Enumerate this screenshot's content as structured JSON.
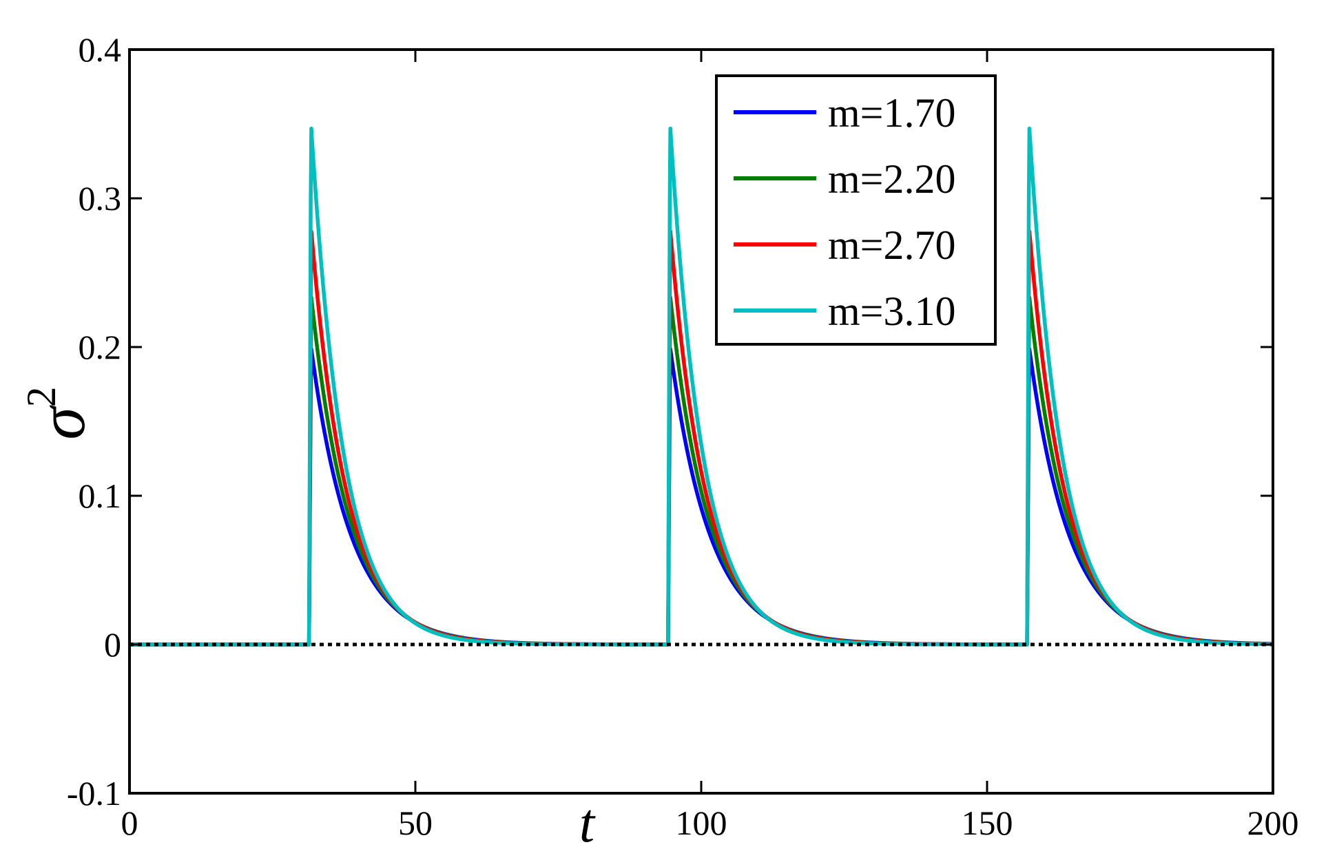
{
  "chart_data": {
    "type": "line",
    "xlabel": "t",
    "ylabel": "σ",
    "ylabel_superscript": "2",
    "xlim": [
      0,
      200
    ],
    "ylim": [
      -0.1,
      0.4
    ],
    "xticks": [
      0,
      50,
      100,
      150,
      200
    ],
    "xtick_labels": [
      "0",
      "50",
      "100",
      "150",
      "200"
    ],
    "yticks": [
      -0.1,
      0,
      0.1,
      0.2,
      0.3,
      0.4
    ],
    "ytick_labels": [
      "-0.1",
      "0",
      "0.1",
      "0.2",
      "0.3",
      "0.4"
    ],
    "grid": false,
    "legend_position": "top-right",
    "pulse_times": [
      31.4,
      94.2,
      157.0
    ],
    "reference_line": {
      "y": 0,
      "style": "dotted",
      "color": "#000000"
    },
    "series": [
      {
        "name": "m=1.70",
        "color": "#0000FF",
        "peak": 0.2,
        "decay": 7.0
      },
      {
        "name": "m=2.20",
        "color": "#007F00",
        "peak": 0.235,
        "decay": 6.6
      },
      {
        "name": "m=2.70",
        "color": "#FF0000",
        "peak": 0.28,
        "decay": 6.2
      },
      {
        "name": "m=3.10",
        "color": "#00BFBF",
        "peak": 0.35,
        "decay": 5.7
      }
    ]
  }
}
